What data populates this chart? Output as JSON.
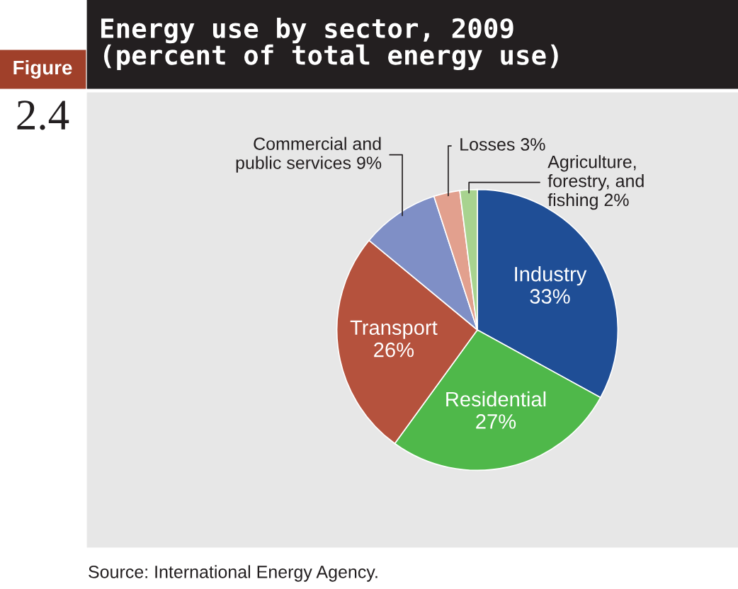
{
  "chart_data": {
    "type": "pie",
    "title": "Energy use by sector, 2009\n(percent of total energy use)",
    "categories": [
      "Industry",
      "Residential",
      "Transport",
      "Commercial and\npublic services",
      "Losses",
      "Agriculture,\nforestry, and\nfishing"
    ],
    "values": [
      33,
      27,
      26,
      9,
      3,
      2
    ],
    "value_labels": [
      "33%",
      "27%",
      "26%",
      "9%",
      "3%",
      "2%"
    ],
    "colors": [
      "#1f4e96",
      "#4fb84a",
      "#b5523d",
      "#7f8fc6",
      "#e2a08e",
      "#a8d38f"
    ],
    "annotations": [
      "Figure",
      "2.4",
      "Source: International Energy Agency."
    ]
  }
}
